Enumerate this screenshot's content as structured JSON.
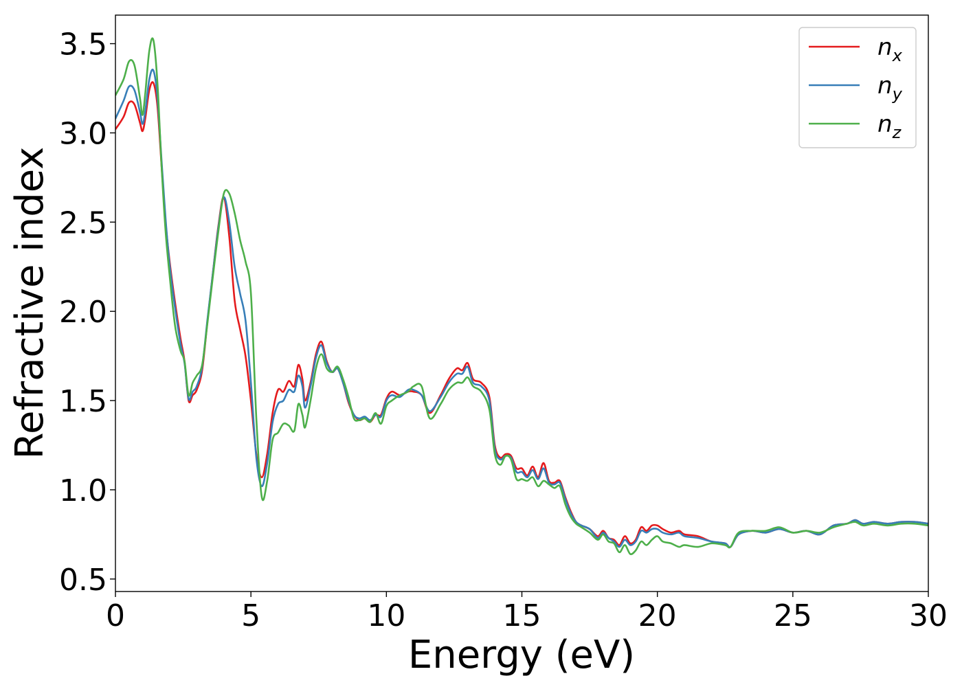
{
  "chart_data": {
    "type": "line",
    "title": "",
    "xlabel": "Energy (eV)",
    "ylabel": "Refractive index",
    "xlim": [
      0,
      30
    ],
    "ylim": [
      0.43,
      3.66
    ],
    "xticks": [
      0,
      5,
      10,
      15,
      20,
      25,
      30
    ],
    "xtick_labels": [
      "0",
      "5",
      "10",
      "15",
      "20",
      "25",
      "30"
    ],
    "yticks": [
      0.5,
      1.0,
      1.5,
      2.0,
      2.5,
      3.0,
      3.5
    ],
    "ytick_labels": [
      "0.5",
      "1.0",
      "1.5",
      "2.0",
      "2.5",
      "3.0",
      "3.5"
    ],
    "grid": false,
    "legend_position": "top-right",
    "series": [
      {
        "name": "n_x",
        "label_base": "n",
        "label_sub": "x",
        "color": "#e41a1c",
        "x": [
          0,
          0.3,
          0.5,
          0.7,
          0.9,
          1.0,
          1.1,
          1.25,
          1.4,
          1.55,
          1.7,
          1.85,
          2.0,
          2.2,
          2.4,
          2.55,
          2.7,
          2.85,
          3.0,
          3.2,
          3.4,
          3.6,
          3.8,
          4.0,
          4.2,
          4.4,
          4.6,
          4.8,
          5.0,
          5.2,
          5.4,
          5.6,
          5.8,
          6.0,
          6.2,
          6.4,
          6.6,
          6.75,
          6.9,
          7.0,
          7.2,
          7.4,
          7.6,
          7.8,
          8.0,
          8.2,
          8.4,
          8.6,
          8.8,
          9.0,
          9.2,
          9.4,
          9.6,
          9.8,
          10.0,
          10.2,
          10.5,
          10.8,
          11.0,
          11.3,
          11.6,
          12.0,
          12.3,
          12.6,
          12.8,
          13.0,
          13.2,
          13.5,
          13.8,
          14.0,
          14.2,
          14.4,
          14.6,
          14.8,
          15.0,
          15.2,
          15.4,
          15.6,
          15.8,
          16.0,
          16.2,
          16.4,
          16.6,
          16.8,
          17.0,
          17.2,
          17.5,
          17.8,
          18.0,
          18.2,
          18.4,
          18.6,
          18.8,
          19.0,
          19.2,
          19.4,
          19.6,
          19.8,
          20.0,
          20.2,
          20.5,
          20.8,
          21.0,
          21.5,
          22.0,
          22.5,
          22.7,
          23.0,
          23.5,
          24.0,
          24.5,
          25.0,
          25.5,
          26.0,
          26.5,
          27.0,
          27.3,
          27.6,
          28.0,
          28.5,
          29.0,
          29.5,
          30.0
        ],
        "y": [
          3.02,
          3.09,
          3.17,
          3.16,
          3.06,
          3.01,
          3.08,
          3.24,
          3.28,
          3.15,
          2.82,
          2.5,
          2.28,
          2.05,
          1.85,
          1.72,
          1.5,
          1.53,
          1.56,
          1.67,
          1.95,
          2.22,
          2.48,
          2.64,
          2.42,
          2.06,
          1.9,
          1.75,
          1.5,
          1.2,
          1.07,
          1.2,
          1.43,
          1.56,
          1.55,
          1.61,
          1.58,
          1.7,
          1.62,
          1.5,
          1.6,
          1.76,
          1.83,
          1.72,
          1.66,
          1.68,
          1.6,
          1.49,
          1.42,
          1.39,
          1.4,
          1.38,
          1.42,
          1.42,
          1.51,
          1.55,
          1.53,
          1.55,
          1.55,
          1.53,
          1.43,
          1.53,
          1.62,
          1.68,
          1.67,
          1.71,
          1.62,
          1.6,
          1.52,
          1.25,
          1.18,
          1.2,
          1.19,
          1.12,
          1.12,
          1.08,
          1.13,
          1.07,
          1.15,
          1.05,
          1.04,
          1.05,
          0.96,
          0.88,
          0.82,
          0.8,
          0.78,
          0.74,
          0.77,
          0.73,
          0.72,
          0.69,
          0.74,
          0.7,
          0.72,
          0.79,
          0.77,
          0.8,
          0.8,
          0.78,
          0.76,
          0.77,
          0.75,
          0.74,
          0.71,
          0.7,
          0.68,
          0.75,
          0.77,
          0.76,
          0.78,
          0.76,
          0.77,
          0.75,
          0.8,
          0.81,
          0.83,
          0.81,
          0.82,
          0.81,
          0.82,
          0.82,
          0.81
        ]
      },
      {
        "name": "n_y",
        "label_base": "n",
        "label_sub": "y",
        "color": "#377eb8",
        "x": [
          0,
          0.3,
          0.5,
          0.7,
          0.9,
          1.0,
          1.1,
          1.25,
          1.4,
          1.55,
          1.7,
          1.85,
          2.0,
          2.2,
          2.4,
          2.55,
          2.7,
          2.85,
          3.0,
          3.2,
          3.4,
          3.6,
          3.8,
          4.0,
          4.2,
          4.4,
          4.6,
          4.8,
          5.0,
          5.2,
          5.4,
          5.6,
          5.8,
          6.0,
          6.2,
          6.4,
          6.6,
          6.75,
          6.9,
          7.0,
          7.2,
          7.4,
          7.6,
          7.8,
          8.0,
          8.2,
          8.4,
          8.6,
          8.8,
          9.0,
          9.2,
          9.4,
          9.6,
          9.8,
          10.0,
          10.2,
          10.5,
          10.8,
          11.0,
          11.3,
          11.6,
          12.0,
          12.3,
          12.6,
          12.8,
          13.0,
          13.2,
          13.5,
          13.8,
          14.0,
          14.2,
          14.4,
          14.6,
          14.8,
          15.0,
          15.2,
          15.4,
          15.6,
          15.8,
          16.0,
          16.2,
          16.4,
          16.6,
          16.8,
          17.0,
          17.2,
          17.5,
          17.8,
          18.0,
          18.2,
          18.4,
          18.6,
          18.8,
          19.0,
          19.2,
          19.4,
          19.6,
          19.8,
          20.0,
          20.2,
          20.5,
          20.8,
          21.0,
          21.5,
          22.0,
          22.5,
          22.7,
          23.0,
          23.5,
          24.0,
          24.5,
          25.0,
          25.5,
          26.0,
          26.5,
          27.0,
          27.3,
          27.6,
          28.0,
          28.5,
          29.0,
          29.5,
          30.0
        ],
        "y": [
          3.08,
          3.18,
          3.26,
          3.24,
          3.12,
          3.05,
          3.12,
          3.3,
          3.35,
          3.2,
          2.85,
          2.52,
          2.26,
          2.02,
          1.82,
          1.71,
          1.51,
          1.55,
          1.58,
          1.69,
          1.96,
          2.22,
          2.47,
          2.64,
          2.5,
          2.25,
          2.1,
          1.95,
          1.6,
          1.18,
          1.02,
          1.15,
          1.38,
          1.48,
          1.5,
          1.56,
          1.55,
          1.64,
          1.58,
          1.46,
          1.58,
          1.74,
          1.81,
          1.71,
          1.66,
          1.68,
          1.6,
          1.5,
          1.42,
          1.4,
          1.41,
          1.39,
          1.42,
          1.41,
          1.5,
          1.53,
          1.52,
          1.56,
          1.56,
          1.53,
          1.44,
          1.52,
          1.6,
          1.65,
          1.65,
          1.69,
          1.6,
          1.58,
          1.5,
          1.23,
          1.17,
          1.19,
          1.18,
          1.1,
          1.1,
          1.07,
          1.11,
          1.06,
          1.12,
          1.04,
          1.03,
          1.04,
          0.95,
          0.87,
          0.82,
          0.8,
          0.78,
          0.73,
          0.76,
          0.73,
          0.71,
          0.68,
          0.72,
          0.69,
          0.71,
          0.77,
          0.76,
          0.78,
          0.78,
          0.76,
          0.75,
          0.76,
          0.74,
          0.73,
          0.71,
          0.7,
          0.68,
          0.75,
          0.77,
          0.76,
          0.78,
          0.76,
          0.77,
          0.75,
          0.8,
          0.81,
          0.83,
          0.81,
          0.82,
          0.81,
          0.82,
          0.82,
          0.81
        ]
      },
      {
        "name": "n_z",
        "label_base": "n",
        "label_sub": "z",
        "color": "#4daf4a",
        "x": [
          0,
          0.3,
          0.5,
          0.7,
          0.9,
          1.0,
          1.1,
          1.25,
          1.4,
          1.55,
          1.7,
          1.85,
          2.0,
          2.2,
          2.4,
          2.55,
          2.7,
          2.85,
          3.0,
          3.2,
          3.4,
          3.6,
          3.8,
          4.0,
          4.2,
          4.4,
          4.6,
          4.8,
          5.0,
          5.2,
          5.4,
          5.6,
          5.8,
          6.0,
          6.2,
          6.4,
          6.6,
          6.75,
          6.9,
          7.0,
          7.2,
          7.4,
          7.6,
          7.8,
          8.0,
          8.2,
          8.4,
          8.6,
          8.8,
          9.0,
          9.2,
          9.4,
          9.6,
          9.8,
          10.0,
          10.2,
          10.5,
          10.8,
          11.0,
          11.3,
          11.6,
          12.0,
          12.3,
          12.6,
          12.8,
          13.0,
          13.2,
          13.5,
          13.8,
          14.0,
          14.2,
          14.4,
          14.6,
          14.8,
          15.0,
          15.2,
          15.4,
          15.6,
          15.8,
          16.0,
          16.2,
          16.4,
          16.6,
          16.8,
          17.0,
          17.2,
          17.5,
          17.8,
          18.0,
          18.2,
          18.4,
          18.6,
          18.8,
          19.0,
          19.2,
          19.4,
          19.6,
          19.8,
          20.0,
          20.2,
          20.5,
          20.8,
          21.0,
          21.5,
          22.0,
          22.5,
          22.7,
          23.0,
          23.5,
          24.0,
          24.5,
          25.0,
          25.5,
          26.0,
          26.5,
          27.0,
          27.3,
          27.6,
          28.0,
          28.5,
          29.0,
          29.5,
          30.0
        ],
        "y": [
          3.21,
          3.3,
          3.4,
          3.38,
          3.2,
          3.1,
          3.22,
          3.46,
          3.52,
          3.28,
          2.82,
          2.45,
          2.2,
          1.92,
          1.78,
          1.72,
          1.53,
          1.6,
          1.64,
          1.7,
          1.94,
          2.2,
          2.45,
          2.66,
          2.66,
          2.55,
          2.4,
          2.28,
          2.1,
          1.4,
          0.96,
          1.05,
          1.28,
          1.32,
          1.37,
          1.36,
          1.33,
          1.48,
          1.42,
          1.35,
          1.5,
          1.68,
          1.76,
          1.68,
          1.66,
          1.69,
          1.62,
          1.52,
          1.4,
          1.39,
          1.4,
          1.38,
          1.43,
          1.37,
          1.47,
          1.5,
          1.53,
          1.55,
          1.58,
          1.58,
          1.4,
          1.48,
          1.56,
          1.6,
          1.6,
          1.63,
          1.58,
          1.55,
          1.45,
          1.2,
          1.14,
          1.19,
          1.17,
          1.06,
          1.06,
          1.05,
          1.07,
          1.02,
          1.05,
          1.03,
          1.01,
          1.02,
          0.92,
          0.85,
          0.81,
          0.79,
          0.76,
          0.72,
          0.75,
          0.71,
          0.7,
          0.65,
          0.69,
          0.64,
          0.66,
          0.71,
          0.69,
          0.72,
          0.74,
          0.71,
          0.7,
          0.68,
          0.69,
          0.68,
          0.7,
          0.69,
          0.68,
          0.76,
          0.77,
          0.77,
          0.79,
          0.76,
          0.77,
          0.76,
          0.79,
          0.81,
          0.82,
          0.8,
          0.81,
          0.8,
          0.81,
          0.81,
          0.8
        ]
      }
    ]
  }
}
